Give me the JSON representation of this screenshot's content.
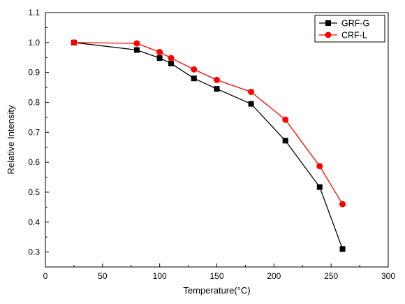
{
  "chart_data": {
    "type": "line",
    "xlabel": "Temperature(°C)",
    "ylabel": "Relative Intensity",
    "xlim": [
      0,
      300
    ],
    "ylim": [
      0.25,
      1.1
    ],
    "xticks": [
      0,
      50,
      100,
      150,
      200,
      250,
      300
    ],
    "yticks": [
      0.3,
      0.4,
      0.5,
      0.6,
      0.7,
      0.8,
      0.9,
      1.0,
      1.1
    ],
    "ytick_labels": [
      "0.3",
      "0.4",
      "0.5",
      "0.6",
      "0.7",
      "0.8",
      "0.9",
      "1.0",
      "1.1"
    ],
    "grid": false,
    "legend_position": "top-right",
    "series": [
      {
        "name": "GRF-G",
        "color": "#000000",
        "marker": "square",
        "x": [
          25,
          80,
          100,
          110,
          130,
          150,
          180,
          210,
          240,
          260
        ],
        "y": [
          1.0,
          0.975,
          0.948,
          0.93,
          0.88,
          0.845,
          0.795,
          0.672,
          0.517,
          0.31
        ]
      },
      {
        "name": "CRF-L",
        "color": "#ff0000",
        "marker": "circle",
        "x": [
          25,
          80,
          100,
          110,
          130,
          150,
          180,
          210,
          240,
          260
        ],
        "y": [
          1.0,
          0.997,
          0.968,
          0.948,
          0.91,
          0.875,
          0.835,
          0.742,
          0.587,
          0.46
        ]
      }
    ]
  }
}
